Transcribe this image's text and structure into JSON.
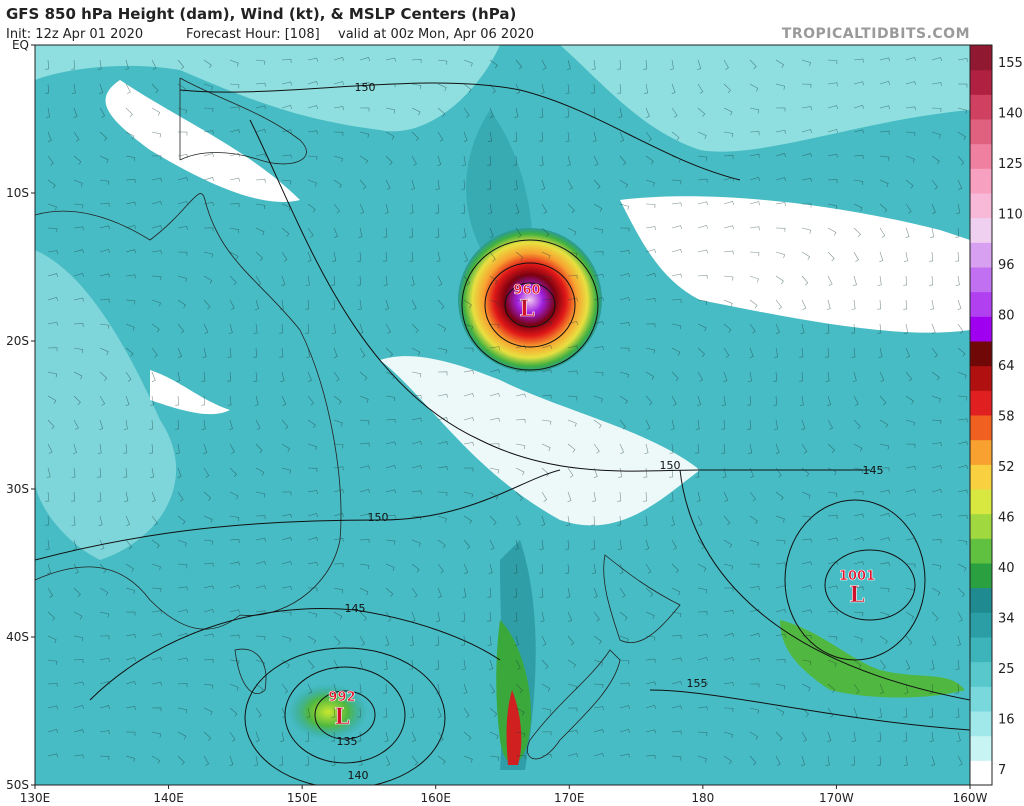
{
  "header": {
    "title": "GFS 850 hPa Height (dam), Wind (kt), & MSLP Centers (hPa)",
    "init": "Init: 12z Apr 01 2020",
    "forecast_hour": "Forecast Hour: [108]",
    "valid": "valid at 00z Mon, Apr 06 2020",
    "source": "TROPICALTIDBITS.COM"
  },
  "map": {
    "lat_labels": [
      "EQ",
      "10S",
      "20S",
      "30S",
      "40S",
      "50S"
    ],
    "lon_labels": [
      "130E",
      "140E",
      "150E",
      "160E",
      "170E",
      "180",
      "170W",
      "160W"
    ],
    "contour_labels": [
      150,
      150,
      150,
      145,
      145,
      155,
      135,
      140
    ],
    "pressure_centers": [
      {
        "value": 960,
        "symbol": "L"
      },
      {
        "value": 1001,
        "symbol": "L"
      },
      {
        "value": 992,
        "symbol": "L"
      }
    ]
  },
  "colorbar": {
    "labels": [
      155,
      140,
      125,
      110,
      96,
      80,
      64,
      58,
      52,
      46,
      40,
      34,
      25,
      16,
      7
    ]
  }
}
